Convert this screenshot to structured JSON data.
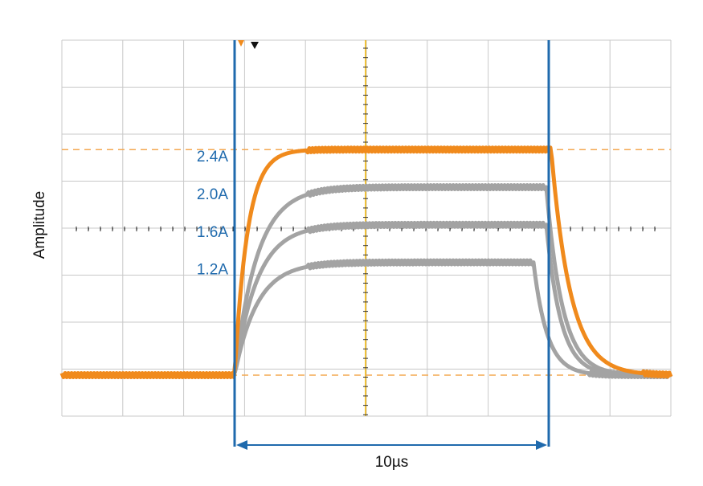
{
  "chart_data": {
    "type": "pulse",
    "y_label": "Amplitude",
    "annotation": "10µs",
    "values": [
      2.4,
      2.0,
      1.6,
      1.2
    ],
    "value_labels": [
      "2.4A",
      "2.0A",
      "1.6A",
      "1.2A"
    ],
    "colors": [
      "#f08a1c",
      "#a3a3a3",
      "#a3a3a3",
      "#a3a3a3"
    ],
    "marker_color": "#1f6aad",
    "grid": true
  }
}
